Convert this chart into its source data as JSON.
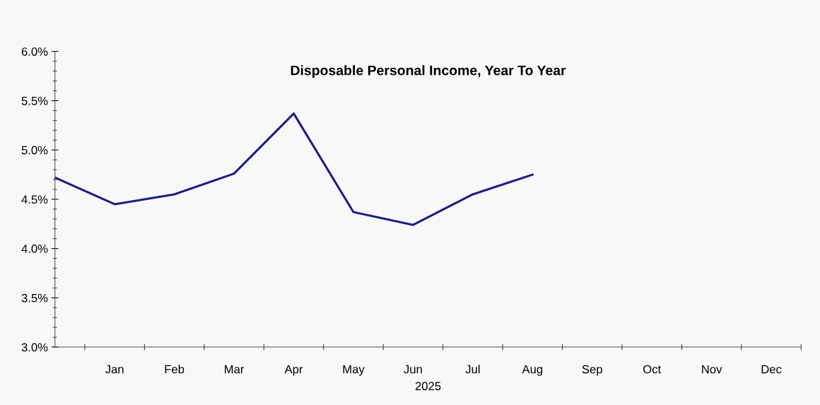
{
  "chart_data": {
    "type": "line",
    "title": "Disposable Personal Income, Year To Year",
    "xlabel": "2025",
    "categories": [
      null,
      "Jan",
      "Feb",
      "Mar",
      "Apr",
      "May",
      "Jun",
      "Jul",
      "Aug",
      "Sep",
      "Oct",
      "Nov",
      "Dec"
    ],
    "series": [
      {
        "color": "#1f1a8a",
        "values": [
          4.72,
          4.45,
          4.55,
          4.76,
          5.37,
          4.37,
          4.24,
          4.55,
          4.75,
          null,
          null,
          null,
          null
        ]
      }
    ],
    "ylim": [
      3.0,
      6.0
    ],
    "yticks": [
      {
        "value": 3.0,
        "label": "3.0%"
      },
      {
        "value": 3.5,
        "label": "3.5%"
      },
      {
        "value": 4.0,
        "label": "4.0%"
      },
      {
        "value": 4.5,
        "label": "4.5%"
      },
      {
        "value": 5.0,
        "label": "5.0%"
      },
      {
        "value": 5.5,
        "label": "5.5%"
      },
      {
        "value": 6.0,
        "label": "6.0%"
      }
    ],
    "grid": false,
    "legend": false,
    "marker": "none",
    "line_style": "solid"
  }
}
